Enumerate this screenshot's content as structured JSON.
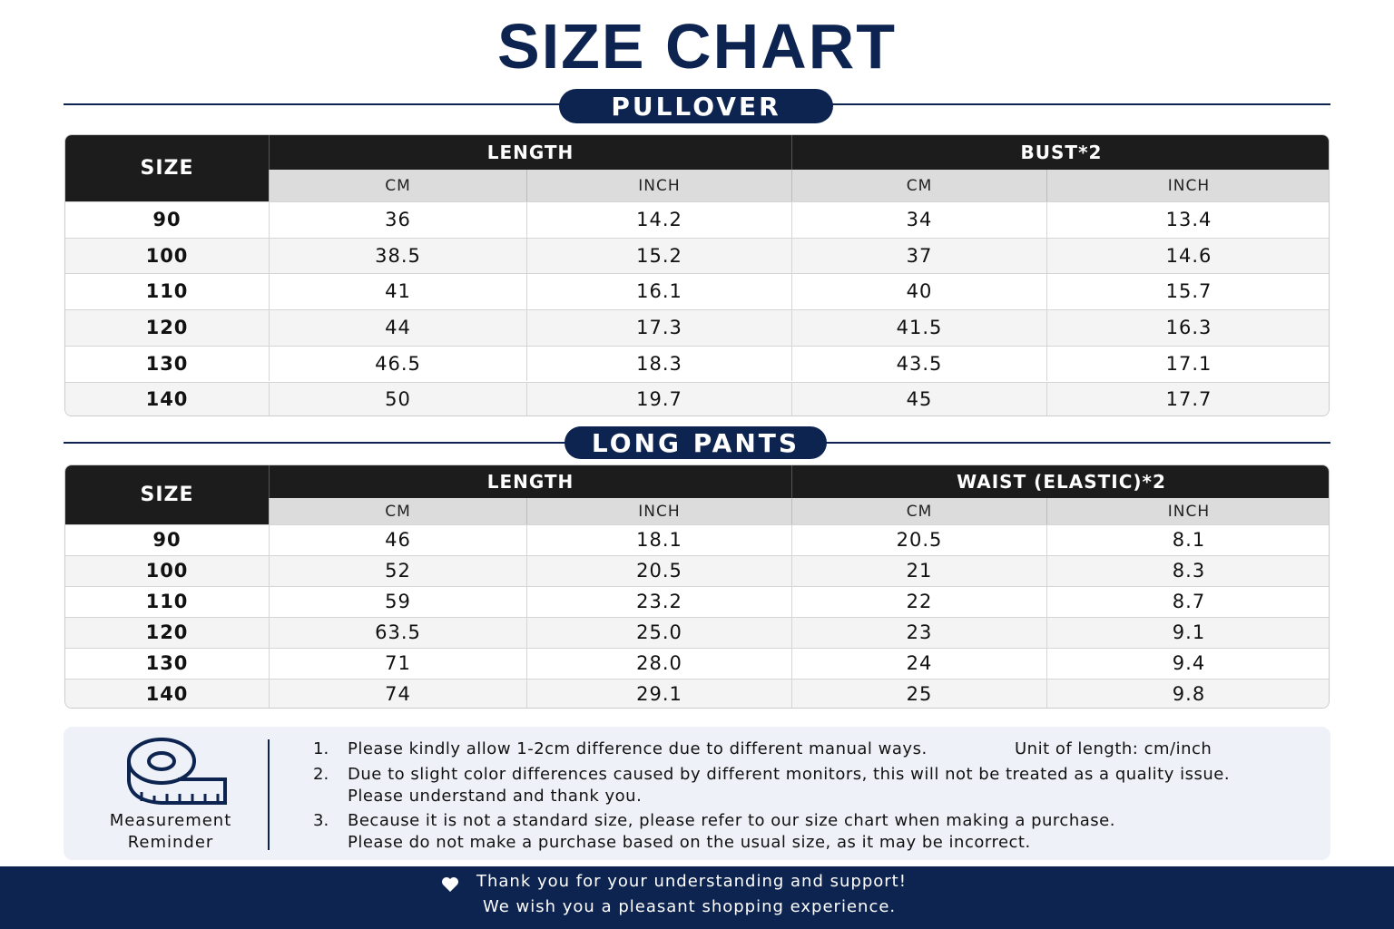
{
  "title": "SIZE CHART",
  "sections": [
    {
      "label": "PULLOVER",
      "size_header": "SIZE",
      "groups": [
        "LENGTH",
        "BUST*2"
      ],
      "subheaders": [
        "CM",
        "INCH",
        "CM",
        "INCH"
      ],
      "rows": [
        [
          "90",
          "36",
          "14.2",
          "34",
          "13.4"
        ],
        [
          "100",
          "38.5",
          "15.2",
          "37",
          "14.6"
        ],
        [
          "110",
          "41",
          "16.1",
          "40",
          "15.7"
        ],
        [
          "120",
          "44",
          "17.3",
          "41.5",
          "16.3"
        ],
        [
          "130",
          "46.5",
          "18.3",
          "43.5",
          "17.1"
        ],
        [
          "140",
          "50",
          "19.7",
          "45",
          "17.7"
        ]
      ]
    },
    {
      "label": "LONG PANTS",
      "size_header": "SIZE",
      "groups": [
        "LENGTH",
        "WAIST (ELASTIC)*2"
      ],
      "subheaders": [
        "CM",
        "INCH",
        "CM",
        "INCH"
      ],
      "rows": [
        [
          "90",
          "46",
          "18.1",
          "20.5",
          "8.1"
        ],
        [
          "100",
          "52",
          "20.5",
          "21",
          "8.3"
        ],
        [
          "110",
          "59",
          "23.2",
          "22",
          "8.7"
        ],
        [
          "120",
          "63.5",
          "25.0",
          "23",
          "9.1"
        ],
        [
          "130",
          "71",
          "28.0",
          "24",
          "9.4"
        ],
        [
          "140",
          "74",
          "29.1",
          "25",
          "9.8"
        ]
      ]
    }
  ],
  "note": {
    "label": [
      "Measurement",
      "Reminder"
    ],
    "unit": "Unit of length: cm/inch",
    "items": [
      {
        "num": "1.",
        "lines": [
          "Please kindly allow 1-2cm difference due to different manual ways."
        ]
      },
      {
        "num": "2.",
        "lines": [
          "Due to slight color differences caused by different monitors,  this will not be treated as a quality issue.",
          "Please understand and thank you."
        ]
      },
      {
        "num": "3.",
        "lines": [
          "Because it is not a standard size, please refer to our size chart when making a purchase.",
          "Please do not make a purchase based on the usual size, as it may be incorrect."
        ]
      }
    ]
  },
  "footer": [
    "Thank you for your understanding and support!",
    "We wish you a pleasant shopping experience."
  ]
}
